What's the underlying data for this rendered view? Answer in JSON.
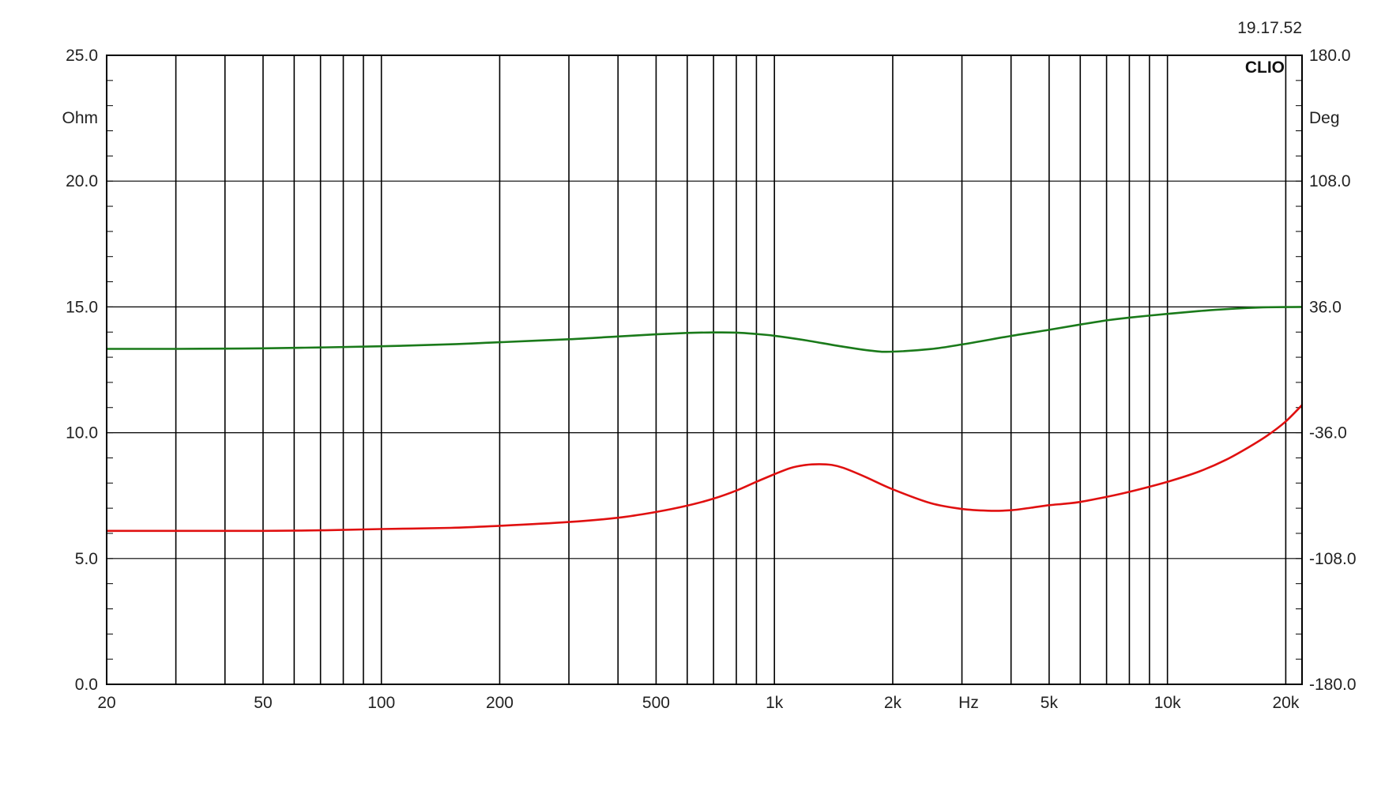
{
  "timestamp": "19.17.52",
  "brand_label": "CLIO",
  "chart_data": {
    "type": "line",
    "title": "",
    "xlabel": "Hz",
    "x_scale": "log",
    "xlim": [
      20,
      22000
    ],
    "x_ticks": [
      {
        "value": 20,
        "label": "20"
      },
      {
        "value": 50,
        "label": "50"
      },
      {
        "value": 100,
        "label": "100"
      },
      {
        "value": 200,
        "label": "200"
      },
      {
        "value": 500,
        "label": "500"
      },
      {
        "value": 1000,
        "label": "1k"
      },
      {
        "value": 2000,
        "label": "2k"
      },
      {
        "value": 5000,
        "label": "5k"
      },
      {
        "value": 10000,
        "label": "10k"
      },
      {
        "value": 20000,
        "label": "20k"
      }
    ],
    "y_left": {
      "unit": "Ohm",
      "lim": [
        0,
        25
      ],
      "ticks": [
        {
          "value": 0,
          "label": "0.0"
        },
        {
          "value": 5,
          "label": "5.0"
        },
        {
          "value": 10,
          "label": "10.0"
        },
        {
          "value": 15,
          "label": "15.0"
        },
        {
          "value": 20,
          "label": "20.0"
        },
        {
          "value": 25,
          "label": "25.0"
        }
      ]
    },
    "y_right": {
      "unit": "Deg",
      "lim": [
        -180,
        180
      ],
      "ticks": [
        {
          "value": -180,
          "label": "-180.0"
        },
        {
          "value": -108,
          "label": "-108.0"
        },
        {
          "value": -36,
          "label": "-36.0"
        },
        {
          "value": 36,
          "label": "36.0"
        },
        {
          "value": 108,
          "label": "108.0"
        },
        {
          "value": 180,
          "label": "180.0"
        }
      ]
    },
    "grid": true,
    "series": [
      {
        "color": "#e01010",
        "axis": "left",
        "points": [
          [
            20,
            6.1
          ],
          [
            30,
            6.1
          ],
          [
            50,
            6.1
          ],
          [
            70,
            6.12
          ],
          [
            100,
            6.17
          ],
          [
            150,
            6.22
          ],
          [
            200,
            6.3
          ],
          [
            300,
            6.45
          ],
          [
            400,
            6.62
          ],
          [
            500,
            6.85
          ],
          [
            600,
            7.1
          ],
          [
            700,
            7.38
          ],
          [
            800,
            7.7
          ],
          [
            900,
            8.05
          ],
          [
            1000,
            8.35
          ],
          [
            1100,
            8.6
          ],
          [
            1200,
            8.72
          ],
          [
            1300,
            8.75
          ],
          [
            1400,
            8.72
          ],
          [
            1500,
            8.6
          ],
          [
            1700,
            8.25
          ],
          [
            2000,
            7.75
          ],
          [
            2500,
            7.2
          ],
          [
            3000,
            6.97
          ],
          [
            3500,
            6.9
          ],
          [
            4000,
            6.92
          ],
          [
            4500,
            7.02
          ],
          [
            5000,
            7.12
          ],
          [
            5500,
            7.18
          ],
          [
            6000,
            7.25
          ],
          [
            7000,
            7.45
          ],
          [
            8000,
            7.65
          ],
          [
            10000,
            8.05
          ],
          [
            12000,
            8.45
          ],
          [
            14000,
            8.9
          ],
          [
            16000,
            9.4
          ],
          [
            18000,
            9.9
          ],
          [
            20000,
            10.45
          ],
          [
            22000,
            11.1
          ]
        ]
      },
      {
        "color": "#1a7a1a",
        "axis": "right",
        "points": [
          [
            20,
            12.0
          ],
          [
            30,
            12.0
          ],
          [
            40,
            12.1
          ],
          [
            50,
            12.3
          ],
          [
            70,
            12.8
          ],
          [
            100,
            13.5
          ],
          [
            150,
            14.6
          ],
          [
            200,
            15.8
          ],
          [
            300,
            17.5
          ],
          [
            400,
            19.1
          ],
          [
            500,
            20.3
          ],
          [
            600,
            21.1
          ],
          [
            700,
            21.4
          ],
          [
            800,
            21.3
          ],
          [
            900,
            20.5
          ],
          [
            1000,
            19.5
          ],
          [
            1200,
            16.9
          ],
          [
            1500,
            13.2
          ],
          [
            1800,
            10.7
          ],
          [
            2000,
            10.4
          ],
          [
            2500,
            11.9
          ],
          [
            3000,
            14.5
          ],
          [
            4000,
            19.4
          ],
          [
            5000,
            22.9
          ],
          [
            6000,
            25.9
          ],
          [
            7000,
            28.3
          ],
          [
            8000,
            29.9
          ],
          [
            10000,
            32.0
          ],
          [
            12000,
            33.6
          ],
          [
            14000,
            34.7
          ],
          [
            16000,
            35.4
          ],
          [
            18000,
            35.8
          ],
          [
            20000,
            35.9
          ],
          [
            22000,
            36.0
          ]
        ]
      }
    ]
  }
}
